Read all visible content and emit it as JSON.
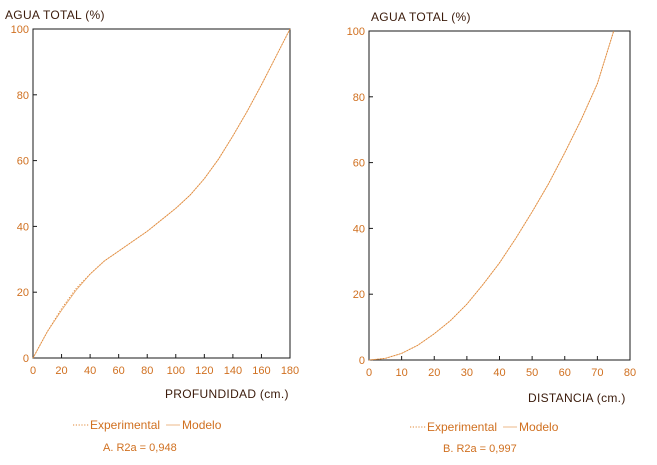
{
  "colors": {
    "axis": "#1a1a1a",
    "curve": "#e08a3a",
    "text": "#d07020",
    "label": "#3a1a0a"
  },
  "chart_data": [
    {
      "type": "line",
      "ylabel": "AGUA TOTAL (%)",
      "xlabel": "PROFUNDIDAD (cm.)",
      "xlim": [
        0,
        180
      ],
      "ylim": [
        0,
        100
      ],
      "xticks": [
        0,
        20,
        40,
        60,
        80,
        100,
        120,
        140,
        160,
        180
      ],
      "yticks": [
        0,
        20,
        40,
        60,
        80,
        100
      ],
      "legend": [
        "Experimental",
        "Modelo"
      ],
      "caption": "A.  R2a = 0,948",
      "series": [
        {
          "name": "Experimental",
          "style": "dotted",
          "x": [
            0,
            10,
            20,
            30,
            40,
            50,
            60,
            70,
            80,
            90,
            100,
            110,
            120,
            130,
            140,
            150,
            160,
            170,
            180
          ],
          "y": [
            0,
            8,
            15,
            21,
            25.5,
            29.5,
            32.5,
            35.5,
            38.5,
            42,
            45.5,
            49.5,
            54.5,
            60.5,
            67.5,
            75,
            83,
            91.5,
            100
          ]
        },
        {
          "name": "Modelo",
          "style": "solid",
          "x": [
            0,
            10,
            20,
            30,
            40,
            50,
            60,
            70,
            80,
            90,
            100,
            110,
            120,
            130,
            140,
            150,
            160,
            170,
            180
          ],
          "y": [
            0,
            8,
            14.5,
            20.5,
            25.5,
            29.5,
            32.5,
            35.5,
            38.5,
            42,
            45.5,
            49.5,
            54.5,
            60.5,
            67.5,
            75,
            83,
            91.5,
            100
          ]
        }
      ]
    },
    {
      "type": "line",
      "ylabel": "AGUA TOTAL (%)",
      "xlabel": "DISTANCIA (cm.)",
      "xlim": [
        0,
        80
      ],
      "ylim": [
        0,
        100
      ],
      "xticks": [
        0,
        10,
        20,
        30,
        40,
        50,
        60,
        70,
        80
      ],
      "yticks": [
        0,
        20,
        40,
        60,
        80,
        100
      ],
      "legend": [
        "Experimental",
        "Modelo"
      ],
      "caption": "B.  R2a = 0,997",
      "series": [
        {
          "name": "Experimental",
          "style": "dotted",
          "x": [
            0,
            5,
            10,
            15,
            20,
            25,
            30,
            35,
            40,
            45,
            50,
            55,
            60,
            65,
            70,
            75
          ],
          "y": [
            0,
            0.5,
            2,
            4.5,
            8,
            12,
            17,
            23,
            29.5,
            37,
            45,
            53.5,
            63,
            73,
            84,
            100
          ]
        },
        {
          "name": "Modelo",
          "style": "solid",
          "x": [
            0,
            5,
            10,
            15,
            20,
            25,
            30,
            35,
            40,
            45,
            50,
            55,
            60,
            65,
            70,
            75
          ],
          "y": [
            0,
            0.5,
            2,
            4.5,
            8,
            12,
            17,
            23,
            29.5,
            37,
            45,
            53.5,
            63,
            73,
            84,
            100
          ]
        }
      ]
    }
  ]
}
